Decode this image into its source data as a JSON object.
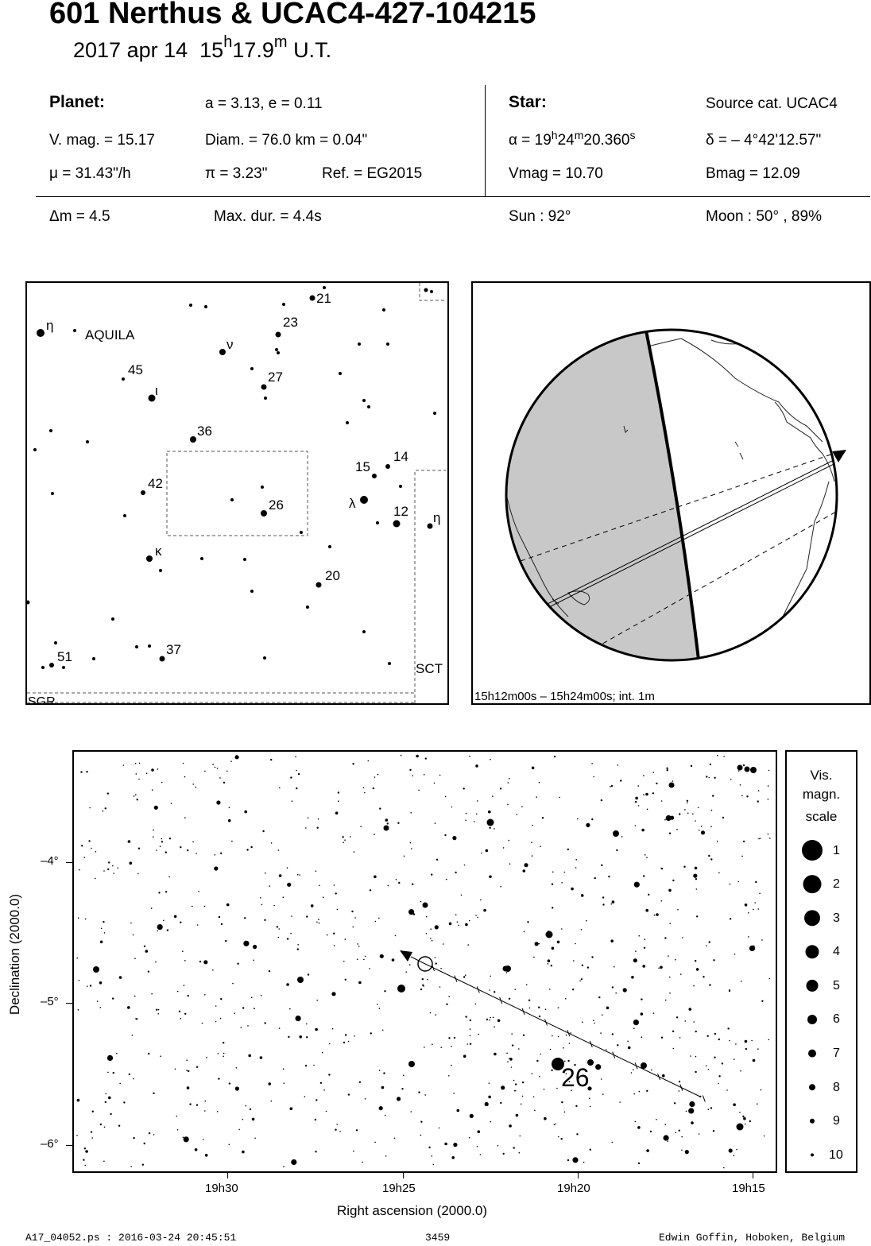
{
  "header": {
    "title": "601 Nerthus  &  UCAC4-427-104215",
    "date": "2017 apr 14",
    "time_h": "15",
    "time_hsup": "h",
    "time_m": "17.9",
    "time_msup": "m",
    "time_ut": "U.T."
  },
  "planet": {
    "heading": "Planet:",
    "orbit": "a = 3.13, e = 0.11",
    "vmag": "V. mag. = 15.17",
    "diam": "Diam. = 76.0 km = 0.04\"",
    "mu": "μ =  31.43\"/h",
    "pi": "π =  3.23\"",
    "ref": "Ref. = EG2015"
  },
  "star": {
    "heading": "Star:",
    "source": "Source cat.  UCAC4",
    "alpha_pre": "α = 19",
    "alpha_h": "h",
    "alpha_mid": "24",
    "alpha_m": "m",
    "alpha_post": "20.360",
    "alpha_s": "s",
    "delta": "δ = – 4°42'12.57\"",
    "vmag": "Vmag = 10.70",
    "bmag": "Bmag = 12.09"
  },
  "event": {
    "dm": "Δm = 4.5",
    "maxdur": "Max. dur. = 4.4s",
    "sun": "Sun :  92°",
    "moon": "Moon :  50° , 89%"
  },
  "constellation_map": {
    "name": "AQUILA",
    "boundaries": [
      "SGR",
      "SCT"
    ],
    "labeled_stars": [
      {
        "label": "η"
      },
      {
        "label": "ν"
      },
      {
        "label": "ι"
      },
      {
        "label": "λ"
      },
      {
        "label": "κ"
      },
      {
        "label": "η"
      },
      {
        "label": "21"
      },
      {
        "label": "23"
      },
      {
        "label": "27"
      },
      {
        "label": "45"
      },
      {
        "label": "36"
      },
      {
        "label": "15"
      },
      {
        "label": "14"
      },
      {
        "label": "42"
      },
      {
        "label": "26"
      },
      {
        "label": "12"
      },
      {
        "label": "20"
      },
      {
        "label": "51"
      },
      {
        "label": "37"
      }
    ]
  },
  "globe": {
    "caption": "15h12m00s – 15h24m00s; int.  1m"
  },
  "finder_chart": {
    "xlabel": "Right ascension (2000.0)",
    "ylabel": "Declination (2000.0)",
    "xticks": [
      "19h30",
      "19h25",
      "19h20",
      "19h15"
    ],
    "yticks": [
      "–4°",
      "–5°",
      "–6°"
    ],
    "star_label": "26"
  },
  "legend": {
    "title_1": "Vis.",
    "title_2": "magn.",
    "title_3": "scale",
    "items": [
      "1",
      "2",
      "3",
      "4",
      "5",
      "6",
      "7",
      "8",
      "9",
      "10"
    ]
  },
  "footer": {
    "file": "A17_04052.ps : 2016-03-24 20:45:51",
    "number": "3459",
    "author": "Edwin Goffin, Hoboken, Belgium"
  }
}
